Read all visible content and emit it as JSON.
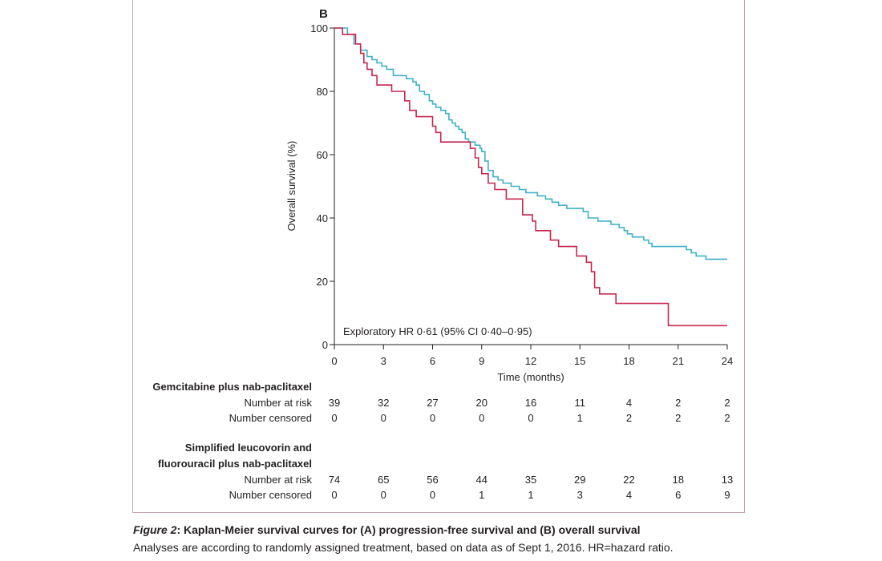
{
  "chart_data": {
    "type": "line",
    "step": true,
    "panel_label": "B",
    "ylabel": "Overall survival (%)",
    "xlabel": "Time (months)",
    "xlim": [
      0,
      24
    ],
    "ylim": [
      0,
      100
    ],
    "xticks": [
      0,
      3,
      6,
      9,
      12,
      15,
      18,
      21,
      24
    ],
    "yticks": [
      0,
      20,
      40,
      60,
      80,
      100
    ],
    "annotation": "Exploratory HR 0·61 (95% CI 0·40–0·95)",
    "series": [
      {
        "name": "Simplified leucovorin and fluorouracil plus nab-paclitaxel",
        "color": "#3fb1c9",
        "x": [
          0,
          0.8,
          1.2,
          1.6,
          2.0,
          2.3,
          2.6,
          2.9,
          3.2,
          3.6,
          4.4,
          4.8,
          5.0,
          5.2,
          5.5,
          5.8,
          6.0,
          6.2,
          6.5,
          6.8,
          7.0,
          7.2,
          7.4,
          7.6,
          7.8,
          8.0,
          8.2,
          8.6,
          8.9,
          9.0,
          9.2,
          9.4,
          9.7,
          10.0,
          10.3,
          10.8,
          11.3,
          11.7,
          12.4,
          12.9,
          13.3,
          13.7,
          14.2,
          15.2,
          15.5,
          16.1,
          16.9,
          17.4,
          17.7,
          17.9,
          18.2,
          18.6,
          18.9,
          19.2,
          19.4,
          21.5,
          21.8,
          22.1,
          22.7,
          23.2,
          24.0
        ],
        "y": [
          100,
          98,
          95,
          93,
          91,
          90,
          89,
          88,
          87,
          85,
          84,
          83,
          82,
          80,
          79,
          77,
          76,
          75,
          74,
          73,
          71,
          70,
          69,
          68,
          67,
          65,
          64,
          63,
          62,
          61,
          58,
          55,
          53,
          52,
          51,
          50,
          49,
          48,
          47,
          46,
          45,
          44,
          43,
          42,
          40,
          39,
          38,
          37,
          36,
          35,
          34,
          34,
          33,
          32,
          31,
          30,
          29,
          28,
          27,
          27,
          27
        ]
      },
      {
        "name": "Gemcitabine plus nab-paclitaxel",
        "color": "#c7264e",
        "x": [
          0,
          0.5,
          1.3,
          1.6,
          1.8,
          2.0,
          2.3,
          2.6,
          3.5,
          4.3,
          4.6,
          5.0,
          6.0,
          6.2,
          6.5,
          7.0,
          8.3,
          8.6,
          8.8,
          9.0,
          9.4,
          9.8,
          10.5,
          11.5,
          12.1,
          12.3,
          13.2,
          13.7,
          14.2,
          14.8,
          15.4,
          15.7,
          15.9,
          16.2,
          17.2,
          20.2,
          20.4,
          24.0
        ],
        "y": [
          100,
          98,
          95,
          92,
          89,
          87,
          85,
          82,
          80,
          77,
          74,
          72,
          69,
          67,
          64,
          64,
          62,
          59,
          56,
          54,
          51,
          49,
          46,
          41,
          39,
          36,
          33,
          31,
          31,
          28,
          26,
          23,
          18,
          16,
          13,
          13,
          6,
          6
        ]
      }
    ],
    "risk_table": {
      "groups": [
        {
          "name_lines": [
            "Gemcitabine plus nab-paclitaxel"
          ],
          "rows": [
            {
              "label": "Number at risk",
              "values": [
                "39",
                "32",
                "27",
                "20",
                "16",
                "11",
                "4",
                "2",
                "2"
              ]
            },
            {
              "label": "Number censored",
              "values": [
                "0",
                "0",
                "0",
                "0",
                "0",
                "1",
                "2",
                "2",
                "2"
              ]
            }
          ]
        },
        {
          "name_lines": [
            "Simplified leucovorin and",
            "fluorouracil plus nab-paclitaxel"
          ],
          "rows": [
            {
              "label": "Number at risk",
              "values": [
                "74",
                "65",
                "56",
                "44",
                "35",
                "29",
                "22",
                "18",
                "13"
              ]
            },
            {
              "label": "Number censored",
              "values": [
                "0",
                "0",
                "0",
                "1",
                "1",
                "3",
                "4",
                "6",
                "9"
              ]
            }
          ]
        }
      ]
    }
  },
  "caption": {
    "figure_label": "Figure 2",
    "title_rest": ": Kaplan-Meier survival curves for (A) progression-free survival and (B) overall survival",
    "body": "Analyses are according to randomly assigned treatment, based on data as of Sept 1, 2016. HR=hazard ratio."
  }
}
